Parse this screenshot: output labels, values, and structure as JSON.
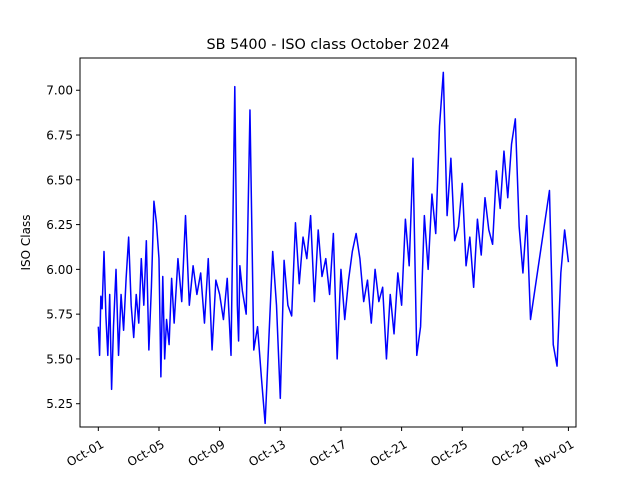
{
  "chart_data": {
    "type": "line",
    "title": "SB 5400 - ISO class October 2024",
    "xlabel": "",
    "ylabel": "ISO Class",
    "grid": false,
    "line_color": "#0000ff",
    "xlim": [
      "2024-09-29T19:00",
      "2024-11-01T12:00"
    ],
    "ylim": [
      5.12,
      7.18
    ],
    "x_ticks": [
      {
        "date": "2024-10-01",
        "label": "Oct-01"
      },
      {
        "date": "2024-10-05",
        "label": "Oct-05"
      },
      {
        "date": "2024-10-09",
        "label": "Oct-09"
      },
      {
        "date": "2024-10-13",
        "label": "Oct-13"
      },
      {
        "date": "2024-10-17",
        "label": "Oct-17"
      },
      {
        "date": "2024-10-21",
        "label": "Oct-21"
      },
      {
        "date": "2024-10-25",
        "label": "Oct-25"
      },
      {
        "date": "2024-10-29",
        "label": "Oct-29"
      },
      {
        "date": "2024-11-01",
        "label": "Nov-01"
      }
    ],
    "y_ticks": [
      5.25,
      5.5,
      5.75,
      6.0,
      6.25,
      6.5,
      6.75,
      7.0
    ],
    "series": [
      {
        "x": [
          "2024-10-01T00:00",
          "2024-10-01T02:00",
          "2024-10-01T04:00",
          "2024-10-01T06:00",
          "2024-10-01T09:00",
          "2024-10-01T12:00",
          "2024-10-01T15:00",
          "2024-10-01T18:00",
          "2024-10-01T21:00",
          "2024-10-02T00:00",
          "2024-10-02T04:00",
          "2024-10-02T08:00",
          "2024-10-02T12:00",
          "2024-10-02T16:00",
          "2024-10-02T20:00",
          "2024-10-03T00:00",
          "2024-10-03T04:00",
          "2024-10-03T08:00",
          "2024-10-03T12:00",
          "2024-10-03T16:00",
          "2024-10-03T20:00",
          "2024-10-04T00:00",
          "2024-10-04T04:00",
          "2024-10-04T08:00",
          "2024-10-04T12:00",
          "2024-10-04T16:00",
          "2024-10-04T20:00",
          "2024-10-05T00:00",
          "2024-10-05T03:00",
          "2024-10-05T06:00",
          "2024-10-05T09:00",
          "2024-10-05T12:00",
          "2024-10-05T16:00",
          "2024-10-05T20:00",
          "2024-10-06T00:00",
          "2024-10-06T06:00",
          "2024-10-06T12:00",
          "2024-10-06T18:00",
          "2024-10-07T00:00",
          "2024-10-07T06:00",
          "2024-10-07T12:00",
          "2024-10-07T18:00",
          "2024-10-08T00:00",
          "2024-10-08T06:00",
          "2024-10-08T12:00",
          "2024-10-08T18:00",
          "2024-10-09T00:00",
          "2024-10-09T06:00",
          "2024-10-09T12:00",
          "2024-10-09T18:00",
          "2024-10-10T00:00",
          "2024-10-10T04:00",
          "2024-10-10T06:00",
          "2024-10-10T08:00",
          "2024-10-10T12:00",
          "2024-10-10T18:00",
          "2024-10-11T00:00",
          "2024-10-11T06:00",
          "2024-10-11T12:00",
          "2024-10-11T18:00",
          "2024-10-12T00:00",
          "2024-10-12T06:00",
          "2024-10-12T12:00",
          "2024-10-12T18:00",
          "2024-10-13T00:00",
          "2024-10-13T06:00",
          "2024-10-13T12:00",
          "2024-10-13T18:00",
          "2024-10-14T00:00",
          "2024-10-14T06:00",
          "2024-10-14T12:00",
          "2024-10-14T18:00",
          "2024-10-15T00:00",
          "2024-10-15T06:00",
          "2024-10-15T12:00",
          "2024-10-15T18:00",
          "2024-10-16T00:00",
          "2024-10-16T06:00",
          "2024-10-16T12:00",
          "2024-10-16T18:00",
          "2024-10-17T00:00",
          "2024-10-17T06:00",
          "2024-10-17T12:00",
          "2024-10-17T18:00",
          "2024-10-18T00:00",
          "2024-10-18T06:00",
          "2024-10-18T12:00",
          "2024-10-18T18:00",
          "2024-10-19T00:00",
          "2024-10-19T06:00",
          "2024-10-19T12:00",
          "2024-10-19T18:00",
          "2024-10-20T00:00",
          "2024-10-20T06:00",
          "2024-10-20T12:00",
          "2024-10-20T18:00",
          "2024-10-21T00:00",
          "2024-10-21T06:00",
          "2024-10-21T12:00",
          "2024-10-21T18:00",
          "2024-10-22T00:00",
          "2024-10-22T06:00",
          "2024-10-22T12:00",
          "2024-10-22T18:00",
          "2024-10-23T00:00",
          "2024-10-23T06:00",
          "2024-10-23T12:00",
          "2024-10-23T18:00",
          "2024-10-24T00:00",
          "2024-10-24T06:00",
          "2024-10-24T12:00",
          "2024-10-24T18:00",
          "2024-10-25T00:00",
          "2024-10-25T06:00",
          "2024-10-25T12:00",
          "2024-10-25T18:00",
          "2024-10-26T00:00",
          "2024-10-26T06:00",
          "2024-10-26T12:00",
          "2024-10-26T18:00",
          "2024-10-27T00:00",
          "2024-10-27T06:00",
          "2024-10-27T12:00",
          "2024-10-27T18:00",
          "2024-10-28T00:00",
          "2024-10-28T06:00",
          "2024-10-28T12:00",
          "2024-10-28T18:00",
          "2024-10-29T00:00",
          "2024-10-29T06:00",
          "2024-10-29T12:00",
          "2024-10-30T18:00",
          "2024-10-31T00:00",
          "2024-10-31T06:00",
          "2024-10-31T12:00",
          "2024-10-31T18:00",
          "2024-11-01T00:00"
        ],
        "y": [
          5.68,
          5.52,
          5.85,
          5.78,
          6.1,
          5.74,
          5.52,
          5.86,
          5.33,
          5.68,
          6.0,
          5.52,
          5.86,
          5.66,
          5.95,
          6.18,
          5.8,
          5.62,
          5.86,
          5.7,
          6.06,
          5.8,
          6.16,
          5.55,
          5.9,
          6.38,
          6.26,
          6.06,
          5.4,
          5.96,
          5.5,
          5.72,
          5.58,
          5.95,
          5.7,
          6.06,
          5.82,
          6.3,
          5.8,
          6.02,
          5.86,
          5.98,
          5.7,
          6.06,
          5.55,
          5.94,
          5.86,
          5.72,
          5.95,
          5.52,
          7.02,
          5.8,
          5.6,
          6.02,
          5.88,
          5.75,
          6.89,
          5.55,
          5.68,
          5.4,
          5.14,
          5.62,
          6.1,
          5.8,
          5.28,
          6.05,
          5.8,
          5.74,
          6.26,
          5.92,
          6.18,
          6.06,
          6.3,
          5.82,
          6.22,
          5.96,
          6.06,
          5.86,
          6.2,
          5.5,
          6.0,
          5.72,
          5.94,
          6.1,
          6.2,
          6.06,
          5.82,
          5.94,
          5.7,
          6.0,
          5.82,
          5.9,
          5.5,
          5.86,
          5.64,
          5.98,
          5.8,
          6.28,
          6.02,
          6.62,
          5.52,
          5.68,
          6.3,
          6.0,
          6.42,
          6.2,
          6.8,
          7.1,
          6.3,
          6.62,
          6.16,
          6.24,
          6.48,
          6.02,
          6.18,
          5.9,
          6.28,
          6.08,
          6.4,
          6.22,
          6.14,
          6.55,
          6.34,
          6.66,
          6.4,
          6.7,
          6.84,
          6.24,
          5.98,
          6.3,
          5.72,
          6.44,
          5.58,
          5.46,
          5.98,
          6.22,
          6.04
        ]
      }
    ]
  }
}
